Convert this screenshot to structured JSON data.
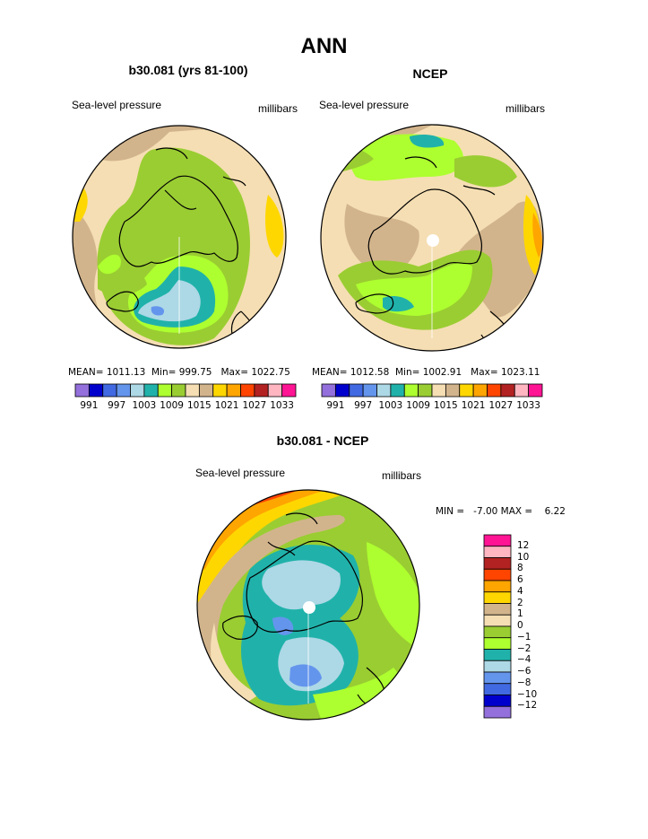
{
  "page_title": "ANN",
  "colors": {
    "hbar": [
      "#9370DB",
      "#0000CD",
      "#4169E1",
      "#6495ED",
      "#ADD8E6",
      "#20B2AA",
      "#ADFF2F",
      "#9ACD32",
      "#F5DEB3",
      "#D2B48C",
      "#FFD700",
      "#FFA500",
      "#FF4500",
      "#B22222",
      "#FFB6C1",
      "#FF1493"
    ],
    "vbar_top_to_bottom": [
      "#FF1493",
      "#FFB6C1",
      "#B22222",
      "#FF4500",
      "#FFA500",
      "#FFD700",
      "#D2B48C",
      "#F5DEB3",
      "#9ACD32",
      "#ADFF2F",
      "#20B2AA",
      "#ADD8E6",
      "#6495ED",
      "#4169E1",
      "#0000CD",
      "#9370DB"
    ]
  },
  "panels": {
    "left": {
      "title": "b30.081 (yrs 81-100)",
      "variable": "Sea-level pressure",
      "units": "millibars",
      "stats": "MEAN= 1011.13  Min= 999.75   Max= 1022.75"
    },
    "right": {
      "title": "NCEP",
      "variable": "Sea-level pressure",
      "units": "millibars",
      "stats": "MEAN= 1012.58  Min= 1002.91   Max= 1023.11"
    },
    "diff": {
      "title": "b30.081 - NCEP",
      "variable": "Sea-level pressure",
      "units": "millibars",
      "stats": "MIN =   -7.00 MAX =    6.22"
    }
  },
  "chart_data": [
    {
      "type": "heatmap",
      "title": "b30.081 (yrs 81-100)",
      "subtitle": "Sea-level pressure",
      "units": "millibars",
      "colorbar_ticks": [
        "991",
        "997",
        "1003",
        "1009",
        "1015",
        "1021",
        "1027",
        "1033"
      ],
      "mean": 1011.13,
      "min": 999.75,
      "max": 1022.75
    },
    {
      "type": "heatmap",
      "title": "NCEP",
      "subtitle": "Sea-level pressure",
      "units": "millibars",
      "colorbar_ticks": [
        "991",
        "997",
        "1003",
        "1009",
        "1015",
        "1021",
        "1027",
        "1033"
      ],
      "mean": 1012.58,
      "min": 1002.91,
      "max": 1023.11
    },
    {
      "type": "heatmap",
      "title": "b30.081 - NCEP",
      "subtitle": "Sea-level pressure",
      "units": "millibars",
      "colorbar_ticks": [
        "12",
        "10",
        "8",
        "6",
        "4",
        "2",
        "1",
        "0",
        "−1",
        "−2",
        "−4",
        "−6",
        "−8",
        "−10",
        "−12"
      ],
      "min": -7.0,
      "max": 6.22
    }
  ]
}
